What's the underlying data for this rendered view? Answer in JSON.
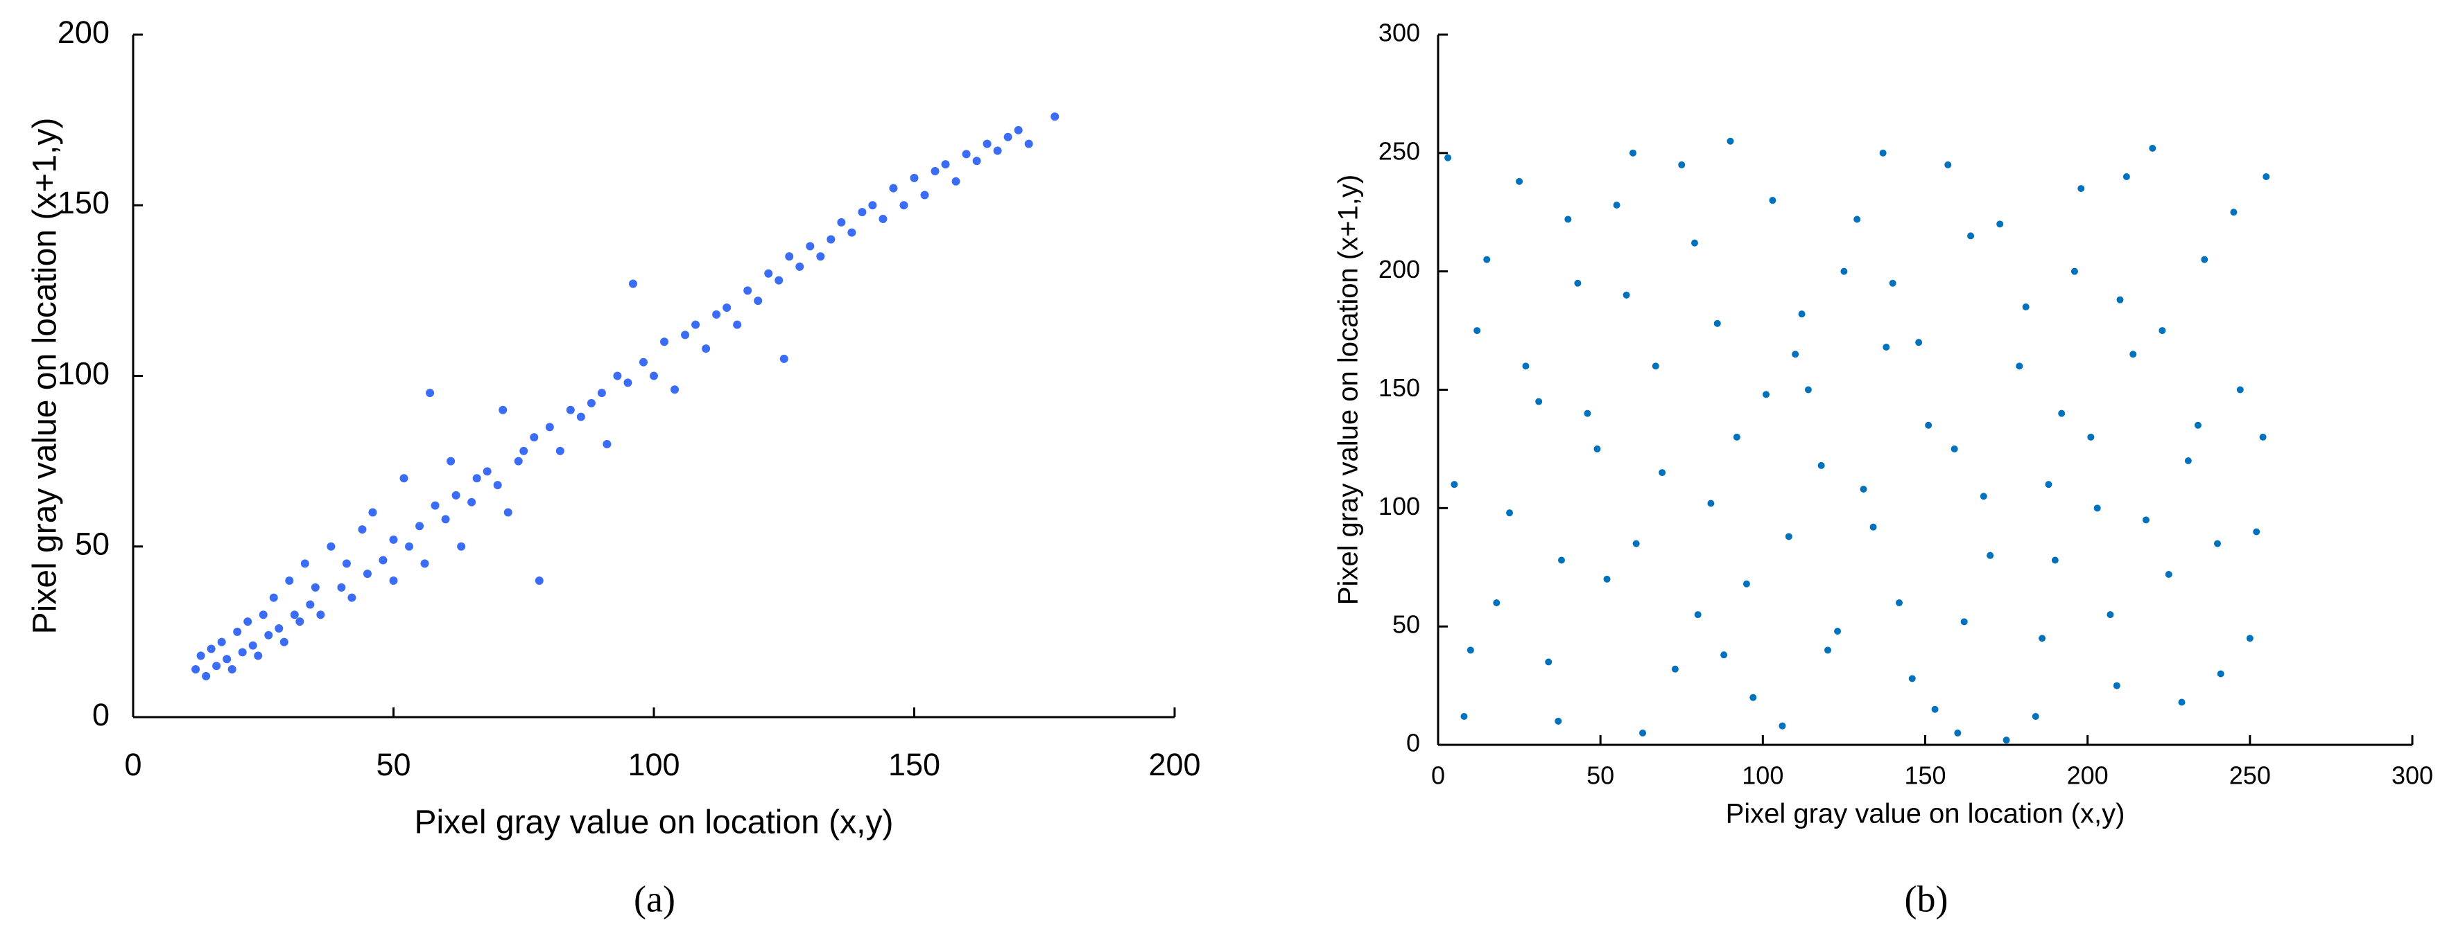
{
  "chart_data": [
    {
      "type": "scatter",
      "caption": "(a)",
      "xlabel": "Pixel gray value on location (x,y)",
      "ylabel": "Pixel gray value on location (x+1,y)",
      "color": "#3b6cf5",
      "xlim": [
        0,
        200
      ],
      "ylim": [
        0,
        200
      ],
      "xticks": [
        0,
        50,
        100,
        150,
        200
      ],
      "yticks": [
        0,
        50,
        100,
        150,
        200
      ],
      "x": [
        12,
        13,
        14,
        15,
        16,
        17,
        18,
        19,
        20,
        21,
        22,
        23,
        24,
        25,
        26,
        27,
        28,
        29,
        30,
        31,
        32,
        33,
        34,
        35,
        36,
        38,
        40,
        41,
        42,
        44,
        45,
        46,
        48,
        50,
        50,
        52,
        53,
        55,
        56,
        57,
        58,
        60,
        61,
        62,
        63,
        65,
        66,
        68,
        70,
        71,
        72,
        74,
        75,
        77,
        78,
        80,
        82,
        84,
        86,
        88,
        90,
        91,
        93,
        95,
        96,
        98,
        100,
        102,
        104,
        106,
        108,
        110,
        112,
        114,
        116,
        118,
        120,
        122,
        124,
        125,
        126,
        128,
        130,
        132,
        134,
        136,
        138,
        140,
        142,
        144,
        146,
        148,
        150,
        152,
        154,
        156,
        158,
        160,
        162,
        164,
        166,
        168,
        170,
        172,
        177
      ],
      "y": [
        14,
        18,
        12,
        20,
        15,
        22,
        17,
        14,
        25,
        19,
        28,
        21,
        18,
        30,
        24,
        35,
        26,
        22,
        40,
        30,
        28,
        45,
        33,
        38,
        30,
        50,
        38,
        45,
        35,
        55,
        42,
        60,
        46,
        52,
        40,
        70,
        50,
        56,
        45,
        95,
        62,
        58,
        75,
        65,
        50,
        63,
        70,
        72,
        68,
        90,
        60,
        75,
        78,
        82,
        40,
        85,
        78,
        90,
        88,
        92,
        95,
        80,
        100,
        98,
        127,
        104,
        100,
        110,
        96,
        112,
        115,
        108,
        118,
        120,
        115,
        125,
        122,
        130,
        128,
        105,
        135,
        132,
        138,
        135,
        140,
        145,
        142,
        148,
        150,
        146,
        155,
        150,
        158,
        153,
        160,
        162,
        157,
        165,
        163,
        168,
        166,
        170,
        172,
        168,
        176
      ]
    },
    {
      "type": "scatter",
      "caption": "(b)",
      "xlabel": "Pixel gray value on location (x,y)",
      "ylabel": "Pixel gray value on location (x+1,y)",
      "color": "#0072bd",
      "xlim": [
        0,
        300
      ],
      "ylim": [
        0,
        300
      ],
      "xticks": [
        0,
        50,
        100,
        150,
        200,
        250,
        300
      ],
      "yticks": [
        0,
        50,
        100,
        150,
        200,
        250,
        300
      ],
      "x": [
        3,
        8,
        15,
        22,
        27,
        34,
        40,
        46,
        52,
        58,
        63,
        69,
        75,
        80,
        86,
        92,
        97,
        103,
        108,
        114,
        120,
        125,
        131,
        137,
        142,
        148,
        153,
        159,
        164,
        170,
        175,
        181,
        186,
        192,
        198,
        203,
        209,
        214,
        220,
        225,
        231,
        236,
        241,
        247,
        252,
        255,
        5,
        12,
        18,
        25,
        31,
        37,
        43,
        49,
        55,
        61,
        67,
        73,
        79,
        84,
        90,
        95,
        101,
        106,
        112,
        118,
        123,
        129,
        134,
        140,
        146,
        151,
        157,
        162,
        168,
        173,
        179,
        184,
        190,
        196,
        201,
        207,
        212,
        218,
        223,
        229,
        234,
        240,
        245,
        250,
        254,
        10,
        60,
        110,
        160,
        210,
        38,
        88,
        138,
        188
      ],
      "y": [
        248,
        12,
        205,
        98,
        160,
        35,
        222,
        140,
        70,
        190,
        5,
        115,
        245,
        55,
        178,
        130,
        20,
        230,
        88,
        150,
        40,
        200,
        108,
        250,
        60,
        170,
        15,
        125,
        215,
        80,
        2,
        185,
        45,
        140,
        235,
        100,
        25,
        165,
        252,
        72,
        120,
        205,
        30,
        150,
        90,
        240,
        110,
        175,
        60,
        238,
        145,
        10,
        195,
        125,
        228,
        85,
        160,
        32,
        212,
        102,
        255,
        68,
        148,
        8,
        182,
        118,
        48,
        222,
        92,
        195,
        28,
        135,
        245,
        52,
        105,
        220,
        160,
        12,
        78,
        200,
        130,
        55,
        240,
        95,
        175,
        18,
        135,
        85,
        225,
        45,
        130,
        40,
        250,
        165,
        5,
        188,
        78,
        38,
        168,
        110
      ]
    }
  ]
}
